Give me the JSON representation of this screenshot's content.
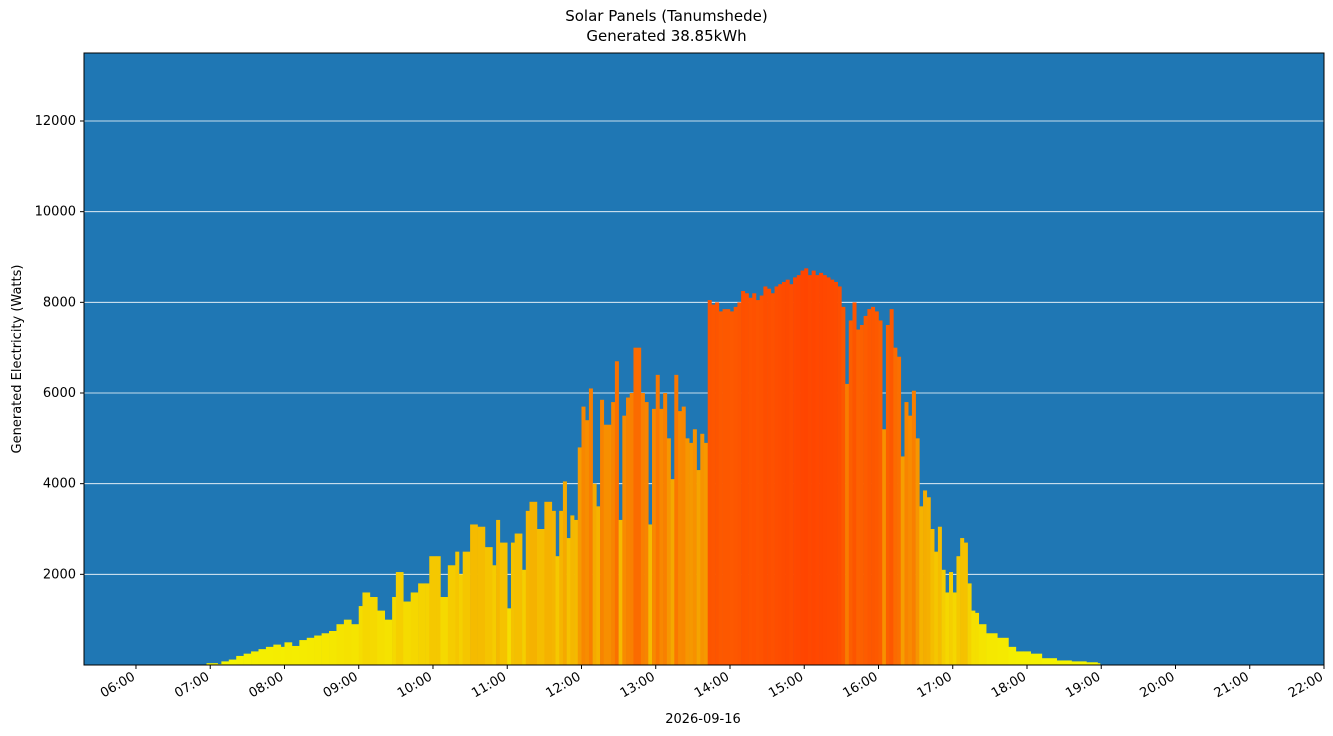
{
  "chart_data": {
    "type": "bar",
    "title": "Solar Panels (Tanumshede)",
    "subtitle": "Generated 38.85kWh",
    "xlabel": "2026-09-16",
    "ylabel": "Generated Electricity (Watts)",
    "ylim": [
      0,
      13500
    ],
    "yticks": [
      2000,
      4000,
      6000,
      8000,
      10000,
      12000
    ],
    "xlim_hours": [
      5.3,
      22.0
    ],
    "xticks": [
      "06:00",
      "07:00",
      "08:00",
      "09:00",
      "10:00",
      "11:00",
      "12:00",
      "13:00",
      "14:00",
      "15:00",
      "16:00",
      "17:00",
      "18:00",
      "19:00",
      "20:00",
      "21:00",
      "22:00"
    ],
    "grid": "horizontal",
    "background_color": "#1f77b4",
    "colormap": [
      "#f5f500",
      "#f5a300",
      "#ff4500"
    ],
    "bar_width_hours": 0.0333,
    "points": [
      [
        6.95,
        40
      ],
      [
        7.1,
        20
      ],
      [
        7.15,
        80
      ],
      [
        7.25,
        120
      ],
      [
        7.35,
        200
      ],
      [
        7.45,
        250
      ],
      [
        7.55,
        300
      ],
      [
        7.65,
        350
      ],
      [
        7.75,
        400
      ],
      [
        7.85,
        450
      ],
      [
        7.95,
        400
      ],
      [
        8.0,
        500
      ],
      [
        8.1,
        420
      ],
      [
        8.2,
        550
      ],
      [
        8.3,
        600
      ],
      [
        8.4,
        650
      ],
      [
        8.5,
        700
      ],
      [
        8.6,
        750
      ],
      [
        8.7,
        900
      ],
      [
        8.8,
        1000
      ],
      [
        8.9,
        900
      ],
      [
        9.0,
        1300
      ],
      [
        9.05,
        1600
      ],
      [
        9.15,
        1500
      ],
      [
        9.25,
        1200
      ],
      [
        9.35,
        1000
      ],
      [
        9.45,
        1500
      ],
      [
        9.5,
        2050
      ],
      [
        9.6,
        1400
      ],
      [
        9.7,
        1600
      ],
      [
        9.8,
        1800
      ],
      [
        9.9,
        1800
      ],
      [
        9.95,
        2400
      ],
      [
        10.05,
        2400
      ],
      [
        10.1,
        1500
      ],
      [
        10.2,
        2200
      ],
      [
        10.3,
        2500
      ],
      [
        10.35,
        2000
      ],
      [
        10.4,
        2500
      ],
      [
        10.5,
        3100
      ],
      [
        10.6,
        3050
      ],
      [
        10.7,
        2600
      ],
      [
        10.8,
        2200
      ],
      [
        10.85,
        3200
      ],
      [
        10.9,
        2700
      ],
      [
        11.0,
        1250
      ],
      [
        11.05,
        2700
      ],
      [
        11.1,
        2900
      ],
      [
        11.2,
        2100
      ],
      [
        11.25,
        3400
      ],
      [
        11.3,
        3600
      ],
      [
        11.4,
        3000
      ],
      [
        11.5,
        3600
      ],
      [
        11.6,
        3400
      ],
      [
        11.65,
        2400
      ],
      [
        11.7,
        3400
      ],
      [
        11.75,
        4050
      ],
      [
        11.8,
        2800
      ],
      [
        11.85,
        3300
      ],
      [
        11.9,
        3200
      ],
      [
        11.95,
        4800
      ],
      [
        12.0,
        5700
      ],
      [
        12.05,
        5400
      ],
      [
        12.1,
        6100
      ],
      [
        12.15,
        4000
      ],
      [
        12.2,
        3500
      ],
      [
        12.25,
        5850
      ],
      [
        12.3,
        5300
      ],
      [
        12.4,
        5800
      ],
      [
        12.45,
        6700
      ],
      [
        12.5,
        3200
      ],
      [
        12.55,
        5500
      ],
      [
        12.6,
        5900
      ],
      [
        12.65,
        6000
      ],
      [
        12.7,
        7000
      ],
      [
        12.8,
        6000
      ],
      [
        12.85,
        5800
      ],
      [
        12.9,
        3100
      ],
      [
        12.95,
        5650
      ],
      [
        13.0,
        6400
      ],
      [
        13.05,
        5650
      ],
      [
        13.1,
        6000
      ],
      [
        13.15,
        5000
      ],
      [
        13.2,
        4100
      ],
      [
        13.25,
        6400
      ],
      [
        13.3,
        5600
      ],
      [
        13.35,
        5700
      ],
      [
        13.4,
        5000
      ],
      [
        13.45,
        4900
      ],
      [
        13.5,
        5200
      ],
      [
        13.55,
        4300
      ],
      [
        13.6,
        5100
      ],
      [
        13.65,
        4900
      ],
      [
        13.7,
        8050
      ],
      [
        13.75,
        7950
      ],
      [
        13.8,
        8000
      ],
      [
        13.85,
        7800
      ],
      [
        13.9,
        7850
      ],
      [
        14.0,
        7800
      ],
      [
        14.05,
        7900
      ],
      [
        14.1,
        8000
      ],
      [
        14.15,
        8250
      ],
      [
        14.2,
        8200
      ],
      [
        14.25,
        8100
      ],
      [
        14.3,
        8200
      ],
      [
        14.35,
        8050
      ],
      [
        14.4,
        8150
      ],
      [
        14.45,
        8350
      ],
      [
        14.5,
        8300
      ],
      [
        14.55,
        8200
      ],
      [
        14.6,
        8350
      ],
      [
        14.65,
        8400
      ],
      [
        14.7,
        8450
      ],
      [
        14.75,
        8500
      ],
      [
        14.8,
        8400
      ],
      [
        14.85,
        8550
      ],
      [
        14.9,
        8600
      ],
      [
        14.95,
        8700
      ],
      [
        15.0,
        8750
      ],
      [
        15.05,
        8600
      ],
      [
        15.1,
        8700
      ],
      [
        15.15,
        8600
      ],
      [
        15.2,
        8650
      ],
      [
        15.25,
        8600
      ],
      [
        15.3,
        8550
      ],
      [
        15.35,
        8500
      ],
      [
        15.4,
        8450
      ],
      [
        15.45,
        8350
      ],
      [
        15.5,
        7900
      ],
      [
        15.55,
        6200
      ],
      [
        15.6,
        7600
      ],
      [
        15.65,
        8000
      ],
      [
        15.7,
        7400
      ],
      [
        15.75,
        7500
      ],
      [
        15.8,
        7700
      ],
      [
        15.85,
        7850
      ],
      [
        15.9,
        7900
      ],
      [
        15.95,
        7800
      ],
      [
        16.0,
        7600
      ],
      [
        16.05,
        5200
      ],
      [
        16.1,
        7500
      ],
      [
        16.15,
        7850
      ],
      [
        16.2,
        7000
      ],
      [
        16.25,
        6800
      ],
      [
        16.3,
        4600
      ],
      [
        16.35,
        5800
      ],
      [
        16.4,
        5500
      ],
      [
        16.45,
        6050
      ],
      [
        16.5,
        5000
      ],
      [
        16.55,
        3500
      ],
      [
        16.6,
        3850
      ],
      [
        16.65,
        3700
      ],
      [
        16.7,
        3000
      ],
      [
        16.75,
        2500
      ],
      [
        16.8,
        3050
      ],
      [
        16.85,
        2100
      ],
      [
        16.9,
        1600
      ],
      [
        16.95,
        2050
      ],
      [
        17.0,
        1600
      ],
      [
        17.05,
        2400
      ],
      [
        17.1,
        2800
      ],
      [
        17.15,
        2700
      ],
      [
        17.2,
        1800
      ],
      [
        17.25,
        1200
      ],
      [
        17.3,
        1150
      ],
      [
        17.35,
        900
      ],
      [
        17.45,
        700
      ],
      [
        17.6,
        600
      ],
      [
        17.75,
        400
      ],
      [
        17.85,
        300
      ],
      [
        17.95,
        300
      ],
      [
        18.05,
        250
      ],
      [
        18.2,
        150
      ],
      [
        18.4,
        100
      ],
      [
        18.6,
        80
      ],
      [
        18.8,
        60
      ],
      [
        18.95,
        40
      ]
    ]
  }
}
